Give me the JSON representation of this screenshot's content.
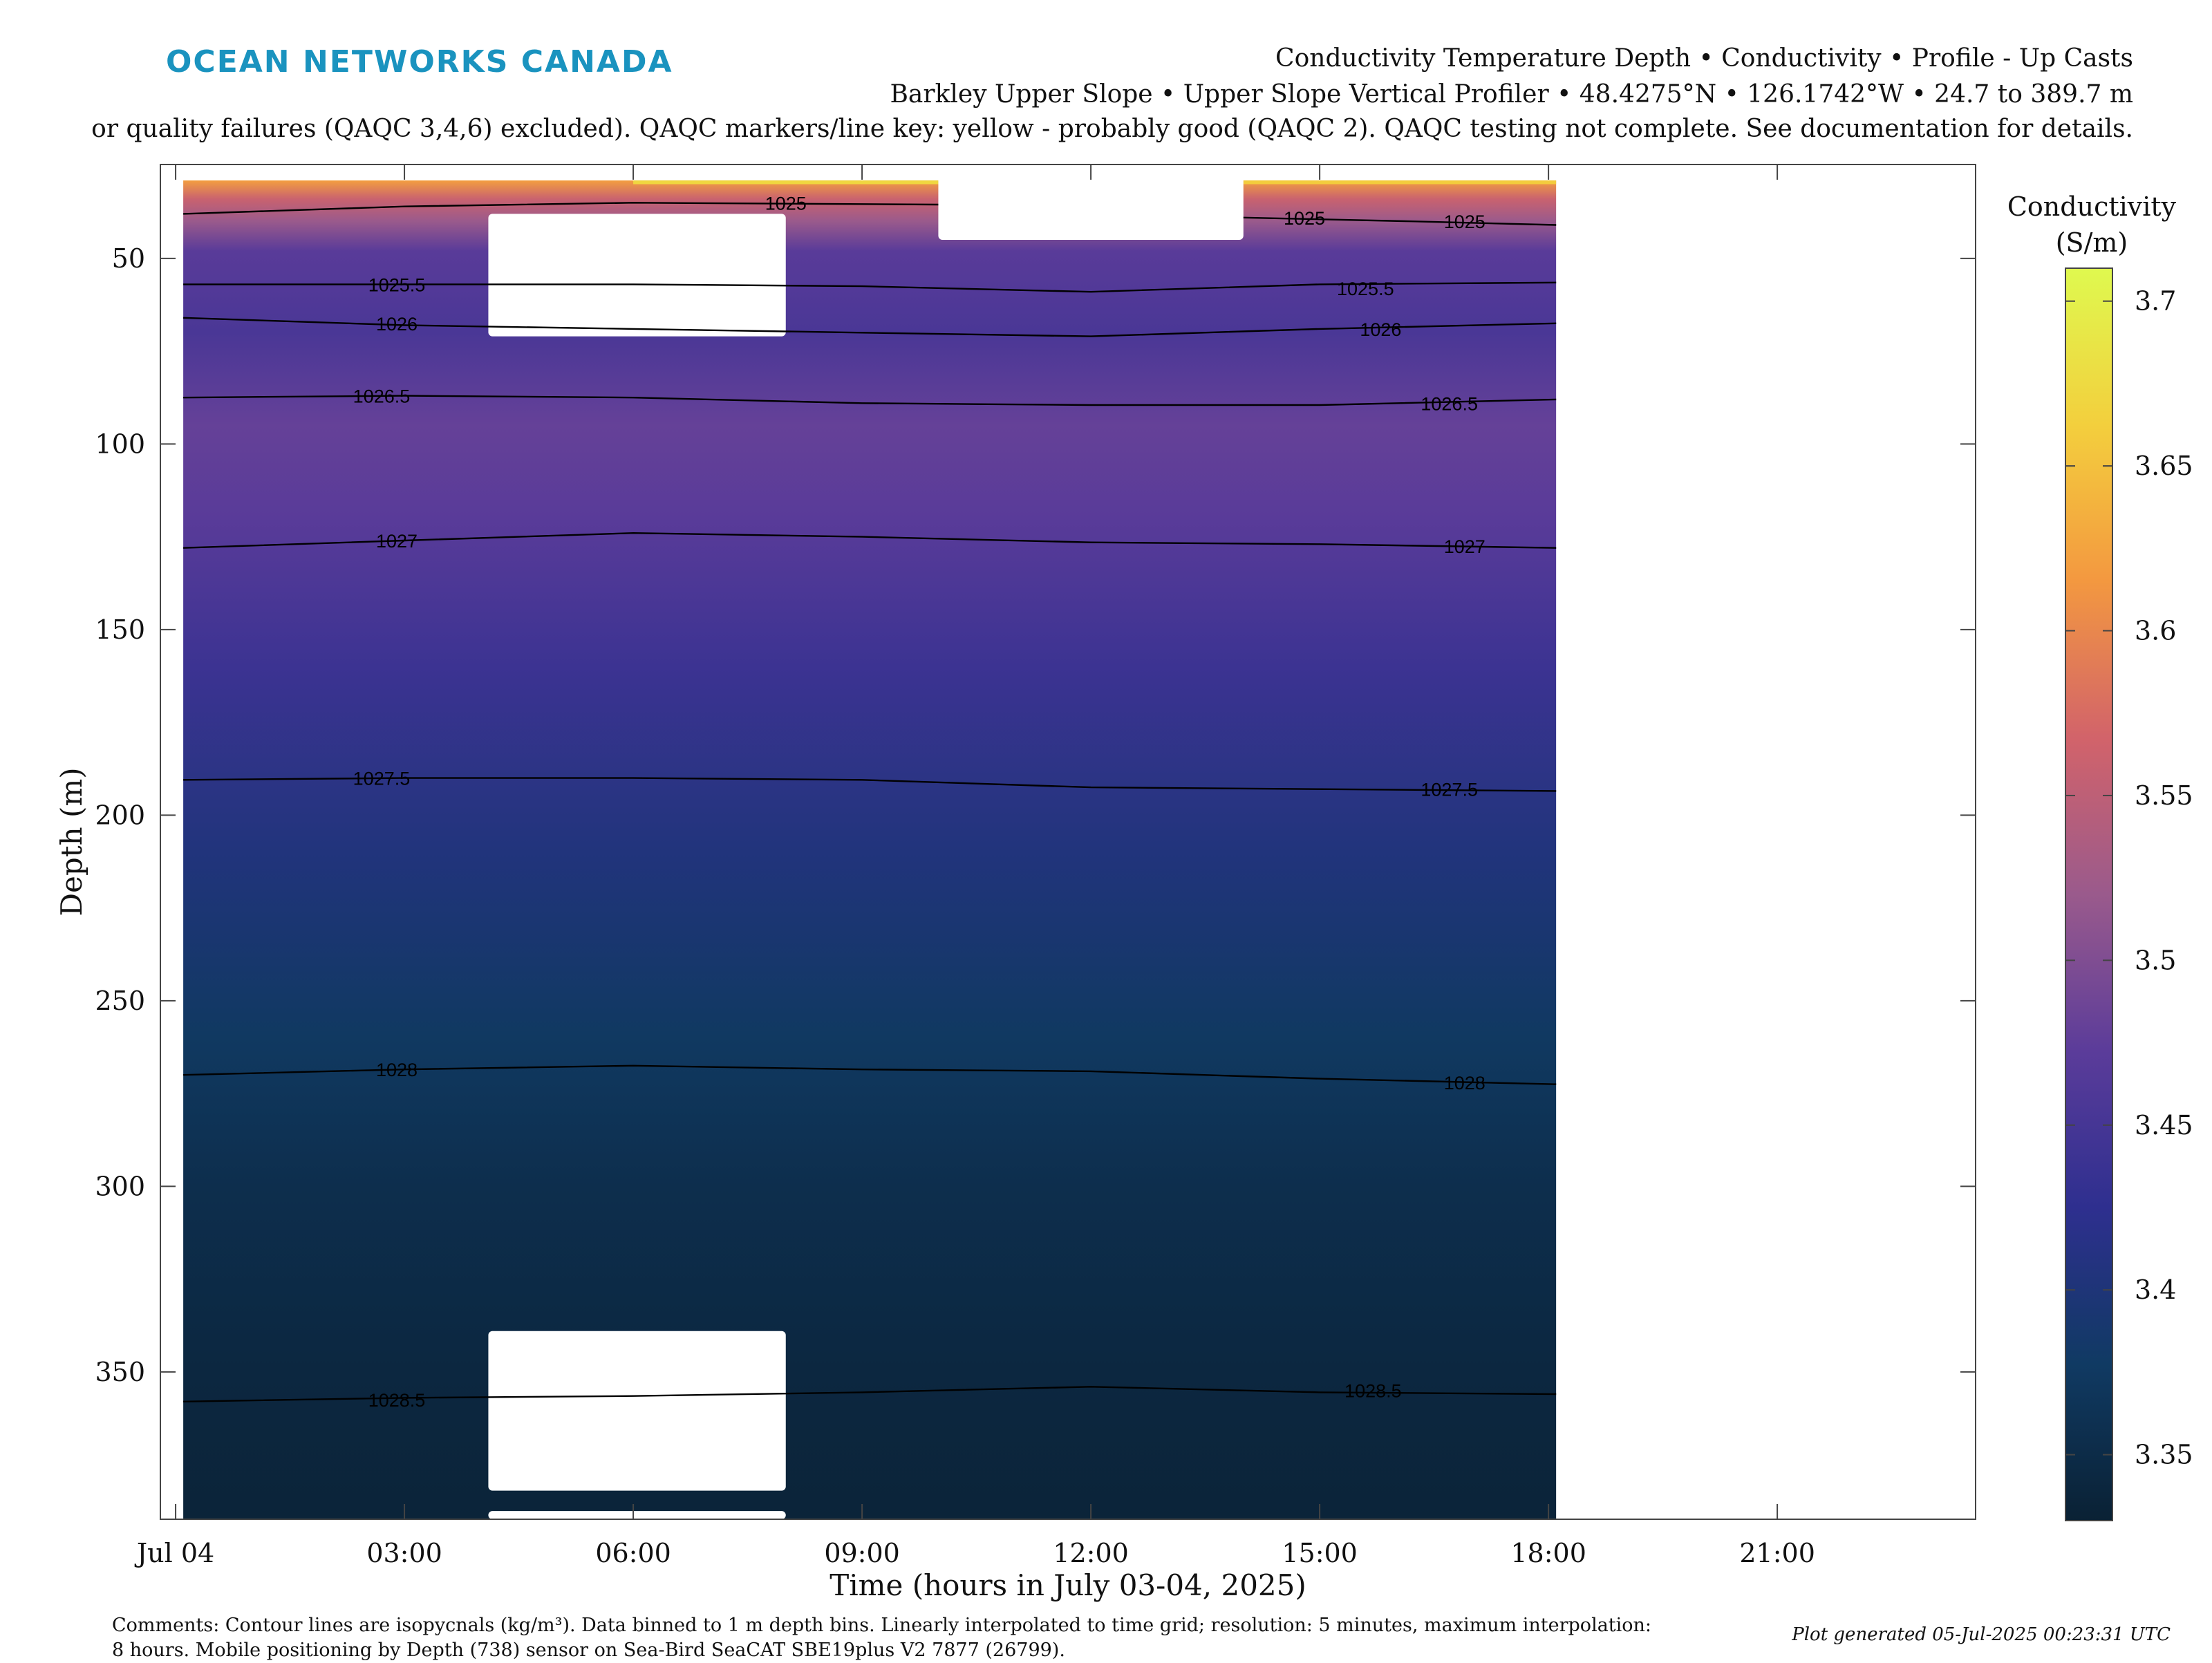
{
  "header": {
    "logo": "OCEAN NETWORKS CANADA",
    "title_line1": "Conductivity Temperature Depth • Conductivity • Profile - Up Casts",
    "title_line2": "Barkley Upper Slope • Upper Slope Vertical Profiler • 48.4275°N • 126.1742°W • 24.7 to 389.7 m",
    "title_line3": "or quality failures (QAQC 3,4,6) excluded). QAQC markers/line key: yellow - probably good (QAQC 2). QAQC testing not complete. See documentation for details."
  },
  "footer": {
    "comments_line1": "Comments: Contour lines are isopycnals (kg/m³). Data binned to 1 m depth bins. Linearly interpolated to time grid; resolution: 5 minutes, maximum interpolation:",
    "comments_line2": "8 hours. Mobile positioning by Depth (738) sensor on Sea-Bird SeaCAT SBE19plus V2 7877 (26799).",
    "generated": "Plot generated 05-Jul-2025 00:23:31 UTC"
  },
  "chart_data": {
    "type": "heatmap",
    "xlabel": "Time (hours in July 03-04, 2025)",
    "ylabel": "Depth (m)",
    "x_ticks": [
      {
        "hour": -0.2,
        "label": "Jul 04"
      },
      {
        "hour": 2.8,
        "label": "03:00"
      },
      {
        "hour": 5.8,
        "label": "06:00"
      },
      {
        "hour": 8.8,
        "label": "09:00"
      },
      {
        "hour": 11.8,
        "label": "12:00"
      },
      {
        "hour": 14.8,
        "label": "15:00"
      },
      {
        "hour": 17.8,
        "label": "18:00"
      },
      {
        "hour": 20.8,
        "label": "21:00"
      }
    ],
    "xlim_hours": [
      -0.4,
      23.4
    ],
    "ylim": [
      389.7,
      24.7
    ],
    "y_ticks": [
      50,
      100,
      150,
      200,
      250,
      300,
      350
    ],
    "data_extent_hours": [
      -0.1,
      17.9
    ],
    "colorbar": {
      "label_line1": "Conductivity",
      "label_line2": "(S/m)",
      "range": [
        3.33,
        3.71
      ],
      "ticks": [
        3.35,
        3.4,
        3.45,
        3.5,
        3.55,
        3.6,
        3.65,
        3.7
      ],
      "colors": [
        "#0a2134",
        "#103a63",
        "#2e2f8f",
        "#5b3c9a",
        "#9a5a8c",
        "#d2636a",
        "#f39840",
        "#f3cf3d",
        "#dff94f"
      ]
    },
    "conductivity_profile": [
      {
        "depth": 29,
        "value": 3.62
      },
      {
        "depth": 34,
        "value": 3.56
      },
      {
        "depth": 40,
        "value": 3.52
      },
      {
        "depth": 48,
        "value": 3.47
      },
      {
        "depth": 70,
        "value": 3.455
      },
      {
        "depth": 95,
        "value": 3.48
      },
      {
        "depth": 120,
        "value": 3.47
      },
      {
        "depth": 160,
        "value": 3.44
      },
      {
        "depth": 210,
        "value": 3.405
      },
      {
        "depth": 260,
        "value": 3.375
      },
      {
        "depth": 300,
        "value": 3.355
      },
      {
        "depth": 350,
        "value": 3.342
      },
      {
        "depth": 389.7,
        "value": 3.335
      }
    ],
    "surface_high_segments": [
      {
        "start_hour": 5.8,
        "end_hour": 9.8,
        "depth_to": 30,
        "value": 3.67
      },
      {
        "start_hour": 13.8,
        "end_hour": 17.9,
        "depth_to": 30,
        "value": 3.66
      }
    ],
    "gaps": [
      {
        "start_hour": 3.9,
        "end_hour": 7.8,
        "depth_from": 38,
        "depth_to": 71
      },
      {
        "start_hour": 9.8,
        "end_hour": 13.8,
        "depth_from": 24.7,
        "depth_to": 45
      },
      {
        "start_hour": 3.9,
        "end_hour": 7.8,
        "depth_from": 339,
        "depth_to": 382
      },
      {
        "start_hour": 3.9,
        "end_hour": 7.8,
        "depth_from": 387.5,
        "depth_to": 389.7
      }
    ],
    "isopycnals": [
      {
        "label": "1025",
        "points": [
          [
            -0.1,
            38
          ],
          [
            2.8,
            36
          ],
          [
            5.8,
            35
          ],
          [
            9.8,
            35.5
          ]
        ],
        "labels_at": [
          [
            7.8,
            35
          ]
        ]
      },
      {
        "label": "1025",
        "points": [
          [
            13.8,
            39
          ],
          [
            16.0,
            40
          ],
          [
            17.9,
            41
          ]
        ],
        "labels_at": [
          [
            14.6,
            39
          ],
          [
            16.7,
            40
          ]
        ]
      },
      {
        "label": "1025.5",
        "points": [
          [
            -0.1,
            57
          ],
          [
            2.8,
            57
          ],
          [
            5.8,
            57
          ],
          [
            8.8,
            57.5
          ],
          [
            11.8,
            59
          ],
          [
            14.8,
            57
          ],
          [
            17.9,
            56.5
          ]
        ],
        "labels_at": [
          [
            2.7,
            57
          ],
          [
            15.4,
            58
          ]
        ]
      },
      {
        "label": "1026",
        "points": [
          [
            -0.1,
            66
          ],
          [
            2.8,
            68
          ],
          [
            5.8,
            69
          ],
          [
            8.8,
            70
          ],
          [
            11.8,
            71
          ],
          [
            14.8,
            69
          ],
          [
            17.9,
            67.5
          ]
        ],
        "labels_at": [
          [
            2.7,
            67.5
          ],
          [
            15.6,
            69
          ]
        ]
      },
      {
        "label": "1026.5",
        "points": [
          [
            -0.1,
            87.5
          ],
          [
            2.8,
            87
          ],
          [
            5.8,
            87.5
          ],
          [
            8.8,
            89
          ],
          [
            11.8,
            89.5
          ],
          [
            14.8,
            89.5
          ],
          [
            17.9,
            88
          ]
        ],
        "labels_at": [
          [
            2.5,
            87
          ],
          [
            16.5,
            89
          ]
        ]
      },
      {
        "label": "1027",
        "points": [
          [
            -0.1,
            128
          ],
          [
            2.8,
            126
          ],
          [
            5.8,
            124
          ],
          [
            8.8,
            125
          ],
          [
            11.8,
            126.5
          ],
          [
            14.8,
            127
          ],
          [
            17.9,
            128
          ]
        ],
        "labels_at": [
          [
            2.7,
            126
          ],
          [
            16.7,
            127.5
          ]
        ]
      },
      {
        "label": "1027.5",
        "points": [
          [
            -0.1,
            190.5
          ],
          [
            2.8,
            190
          ],
          [
            5.8,
            190
          ],
          [
            8.8,
            190.5
          ],
          [
            11.8,
            192.5
          ],
          [
            14.8,
            193
          ],
          [
            17.9,
            193.5
          ]
        ],
        "labels_at": [
          [
            2.5,
            190
          ],
          [
            16.5,
            193
          ]
        ]
      },
      {
        "label": "1028",
        "points": [
          [
            -0.1,
            270
          ],
          [
            2.8,
            268.5
          ],
          [
            5.8,
            267.5
          ],
          [
            8.8,
            268.5
          ],
          [
            11.8,
            269
          ],
          [
            14.8,
            271
          ],
          [
            17.9,
            272.5
          ]
        ],
        "labels_at": [
          [
            2.7,
            268.5
          ],
          [
            16.7,
            272
          ]
        ]
      },
      {
        "label": "1028.5",
        "points": [
          [
            -0.1,
            358
          ],
          [
            2.8,
            357
          ],
          [
            5.8,
            356.5
          ],
          [
            8.8,
            355.5
          ],
          [
            11.8,
            354
          ],
          [
            14.8,
            355.5
          ],
          [
            17.9,
            356
          ]
        ],
        "labels_at": [
          [
            2.7,
            357.5
          ],
          [
            15.5,
            355
          ]
        ]
      }
    ]
  }
}
